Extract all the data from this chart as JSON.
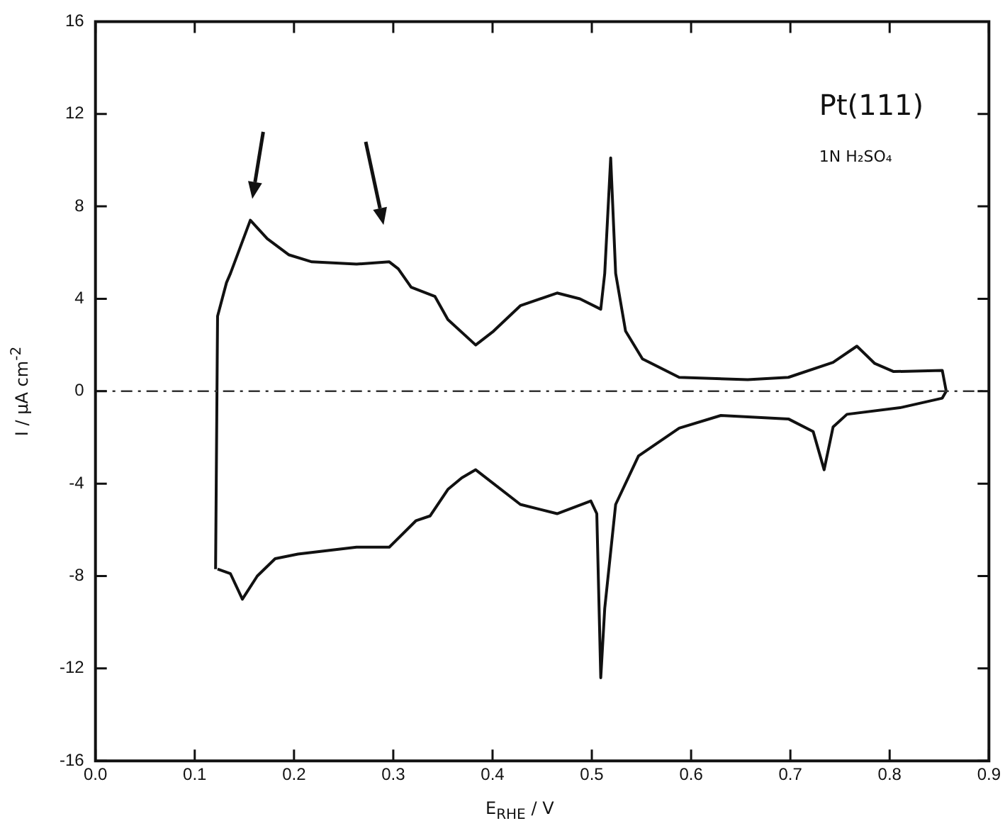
{
  "chart_data": {
    "type": "line",
    "xlabel": "E$_{RHE}$ / V",
    "ylabel": "I / μA cm$^{-2}$",
    "annotations": [
      "Pt(111)",
      "1N H₂SO₄"
    ],
    "series": [
      {
        "color": "#111111",
        "x": [
          0.121,
          0.123,
          0.132,
          0.136,
          0.156,
          0.173,
          0.195,
          0.218,
          0.263,
          0.296,
          0.305,
          0.318,
          0.342,
          0.355,
          0.383,
          0.401,
          0.428,
          0.465,
          0.488,
          0.509,
          0.513,
          0.519,
          0.524,
          0.534,
          0.551,
          0.588,
          0.657,
          0.698,
          0.743,
          0.767,
          0.785,
          0.804,
          0.853,
          0.857
        ],
        "values": [
          -7.7,
          3.25,
          4.7,
          5.1,
          7.4,
          6.6,
          5.9,
          5.6,
          5.5,
          5.6,
          5.3,
          4.5,
          4.1,
          3.1,
          2.0,
          2.6,
          3.7,
          4.25,
          4.0,
          3.55,
          5.1,
          10.1,
          5.1,
          2.6,
          1.4,
          0.6,
          0.5,
          0.6,
          1.25,
          1.95,
          1.2,
          0.85,
          0.9,
          0
        ]
      },
      {
        "color": "#111111",
        "x": [
          0.123,
          0.136,
          0.148,
          0.163,
          0.181,
          0.204,
          0.263,
          0.296,
          0.323,
          0.337,
          0.355,
          0.369,
          0.383,
          0.428,
          0.465,
          0.499,
          0.505,
          0.509,
          0.513,
          0.524,
          0.547,
          0.588,
          0.63,
          0.698,
          0.723,
          0.734,
          0.743,
          0.757,
          0.812,
          0.853,
          0.857
        ],
        "values": [
          -7.7,
          -7.9,
          -9.0,
          -8.0,
          -7.25,
          -7.05,
          -6.75,
          -6.75,
          -5.6,
          -5.4,
          -4.25,
          -3.75,
          -3.4,
          -4.9,
          -5.3,
          -4.75,
          -5.3,
          -12.4,
          -9.4,
          -4.9,
          -2.8,
          -1.6,
          -1.05,
          -1.2,
          -1.75,
          -3.4,
          -1.55,
          -1.0,
          -0.7,
          -0.3,
          0
        ]
      }
    ],
    "xlim": [
      0,
      0.9
    ],
    "xticks": [
      {
        "value": 0,
        "label": "0.0"
      },
      {
        "value": 0.1,
        "label": "0.1"
      },
      {
        "value": 0.2,
        "label": "0.2"
      },
      {
        "value": 0.3,
        "label": "0.3"
      },
      {
        "value": 0.4,
        "label": "0.4"
      },
      {
        "value": 0.5,
        "label": "0.5"
      },
      {
        "value": 0.6,
        "label": "0.6"
      },
      {
        "value": 0.7,
        "label": "0.7"
      },
      {
        "value": 0.8,
        "label": "0.8"
      },
      {
        "value": 0.9,
        "label": "0.9"
      }
    ],
    "ylim": [
      -16,
      16
    ],
    "yticks": [
      -16,
      -12,
      -8,
      -4,
      0,
      4,
      8,
      12,
      16
    ],
    "ref_lines": [
      {
        "axis": "y",
        "value": 0,
        "label": null,
        "color": "#333333",
        "line_style": "dashed"
      }
    ],
    "legend": false,
    "marker": "none",
    "line_style": "solid"
  }
}
